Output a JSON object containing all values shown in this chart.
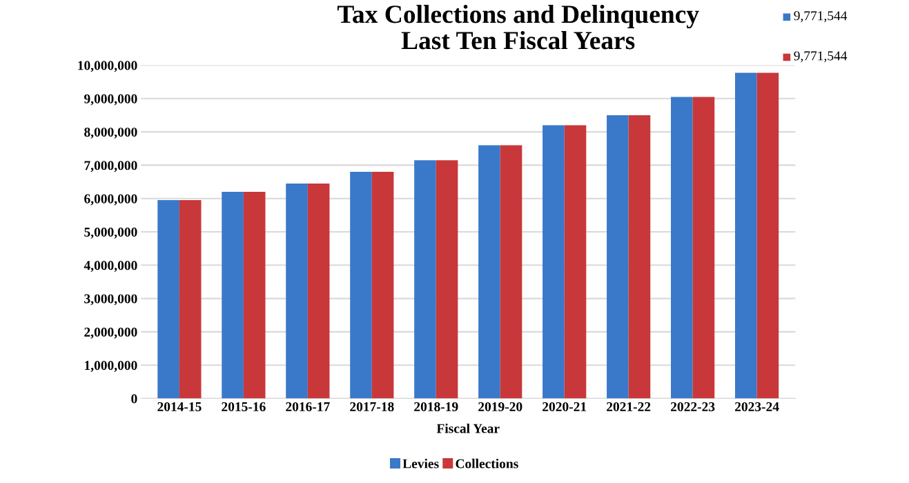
{
  "chart_data": {
    "type": "bar",
    "title": "Tax Collections and Delinquency\nLast Ten Fiscal Years",
    "xlabel": "Fiscal Year",
    "categories": [
      "2014-15",
      "2015-16",
      "2016-17",
      "2017-18",
      "2018-19",
      "2019-20",
      "2020-21",
      "2021-22",
      "2022-23",
      "2023-24"
    ],
    "series": [
      {
        "name": "Levies",
        "color": "#3a78c9",
        "values": [
          5950000,
          6200000,
          6450000,
          6800000,
          7150000,
          7600000,
          8200000,
          8500000,
          9050000,
          9771544
        ]
      },
      {
        "name": "Collections",
        "color": "#c8383a",
        "values": [
          5950000,
          6200000,
          6450000,
          6800000,
          7150000,
          7600000,
          8200000,
          8500000,
          9050000,
          9771544
        ]
      }
    ],
    "annotations": [
      "9,771,544",
      "9,771,544"
    ],
    "ylim": [
      0,
      10000000
    ],
    "yticks": [
      {
        "value": 0,
        "label": "0"
      },
      {
        "value": 1000000,
        "label": "1,000,000"
      },
      {
        "value": 2000000,
        "label": "2,000,000"
      },
      {
        "value": 3000000,
        "label": "3,000,000"
      },
      {
        "value": 4000000,
        "label": "4,000,000"
      },
      {
        "value": 5000000,
        "label": "5,000,000"
      },
      {
        "value": 6000000,
        "label": "6,000,000"
      },
      {
        "value": 7000000,
        "label": "7,000,000"
      },
      {
        "value": 8000000,
        "label": "8,000,000"
      },
      {
        "value": 9000000,
        "label": "9,000,000"
      },
      {
        "value": 10000000,
        "label": "10,000,000"
      }
    ],
    "grid": "y",
    "legend": "bottom"
  }
}
